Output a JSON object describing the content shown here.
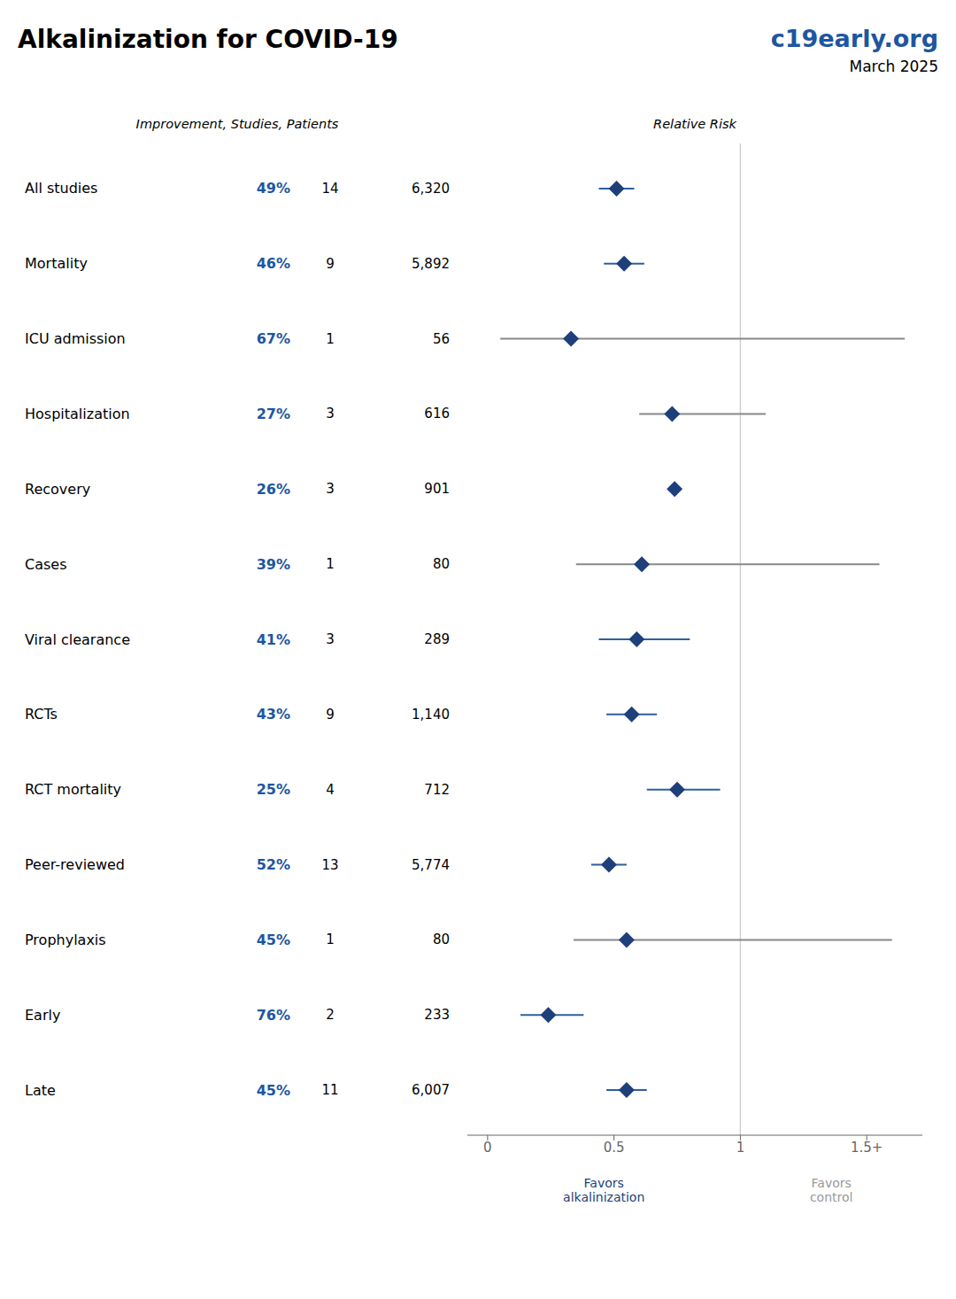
{
  "chart_data": {
    "type": "forest",
    "title": "Alkalinization for COVID-19",
    "annotations": [
      {
        "text": "c19early.org",
        "color": "#1e56a0"
      },
      {
        "text": "March 2025"
      },
      {
        "text": "Favors\nalkalinization",
        "color": "#1e3f7a"
      },
      {
        "text": "Favors\ncontrol",
        "color": "#999999"
      }
    ],
    "column_headers": [
      "Improvement, Studies, Patients",
      "Relative Risk"
    ],
    "categories": [
      "All studies",
      "Mortality",
      "ICU admission",
      "Hospitalization",
      "Recovery",
      "Cases",
      "Viral clearance",
      "RCTs",
      "RCT mortality",
      "Peer-reviewed",
      "Prophylaxis",
      "Early",
      "Late"
    ],
    "values": [
      0.51,
      0.54,
      0.33,
      0.73,
      0.74,
      0.61,
      0.59,
      0.57,
      0.75,
      0.48,
      0.55,
      0.24,
      0.55
    ],
    "ci_lo": [
      0.44,
      0.46,
      0.05,
      0.6,
      null,
      0.35,
      0.44,
      0.47,
      0.63,
      0.41,
      0.34,
      0.13,
      0.47
    ],
    "ci_hi": [
      0.58,
      0.62,
      1.65,
      1.1,
      null,
      1.55,
      0.8,
      0.67,
      0.92,
      0.55,
      1.6,
      0.38,
      0.63
    ],
    "ci_colors": [
      "#2d5fa0",
      "#2d5fa0",
      "#888888",
      "#888888",
      "#2d5fa0",
      "#888888",
      "#2d5fa0",
      "#2d5fa0",
      "#2d5fa0",
      "#2d5fa0",
      "#888888",
      "#2d5fa0",
      "#2d5fa0"
    ],
    "color": "#1e3f7a",
    "columns": [
      {
        "values": [
          49,
          46,
          67,
          27,
          26,
          39,
          41,
          43,
          25,
          52,
          45,
          76,
          45
        ],
        "value_labels": [
          "49%",
          "46%",
          "67%",
          "27%",
          "26%",
          "39%",
          "41%",
          "43%",
          "25%",
          "52%",
          "45%",
          "76%",
          "45%"
        ],
        "color": "#1e56a0"
      },
      {
        "values": [
          14,
          9,
          1,
          3,
          3,
          1,
          3,
          9,
          4,
          13,
          1,
          2,
          11
        ]
      },
      {
        "values": [
          6320,
          5892,
          56,
          616,
          901,
          80,
          289,
          1140,
          712,
          5774,
          80,
          233,
          6007
        ],
        "value_labels": [
          "6,320",
          "5,892",
          "56",
          "616",
          "901",
          "80",
          "289",
          "1,140",
          "712",
          "5,774",
          "80",
          "233",
          "6,007"
        ]
      }
    ],
    "xlim": [
      -0.08,
      1.72
    ],
    "xticks": [
      0,
      0.5,
      1,
      {
        "value": 1.5,
        "label": "1.5+"
      }
    ],
    "ref_line_x": 1.0,
    "grid": false
  }
}
